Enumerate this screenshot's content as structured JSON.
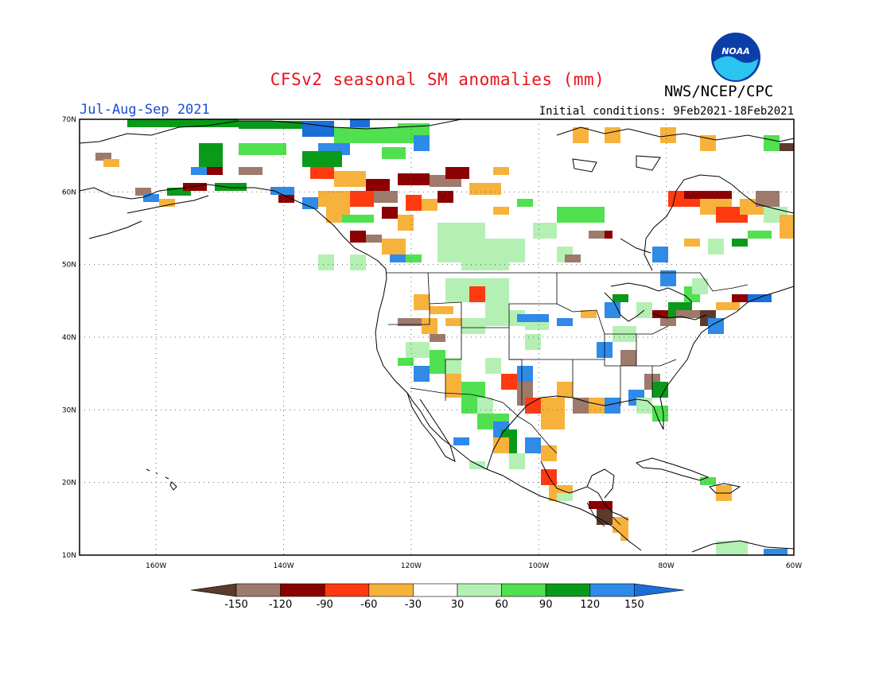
{
  "header": {
    "title": "CFSv2 seasonal SM anomalies (mm)",
    "agency": "NWS/NCEP/CPC",
    "valid_period": "Jul-Aug-Sep 2021",
    "initial_conditions": "Initial conditions: 9Feb2021-18Feb2021",
    "logo_text": "NOAA"
  },
  "map": {
    "lat_labels": [
      "70N",
      "60N",
      "50N",
      "40N",
      "30N",
      "20N",
      "10N"
    ],
    "lon_labels": [
      "160W",
      "140W",
      "120W",
      "100W",
      "80W",
      "60W"
    ],
    "lon_range": [
      -172,
      -60
    ],
    "lat_range": [
      10,
      70
    ]
  },
  "colorbar": {
    "labels": [
      "-150",
      "-120",
      "-90",
      "-60",
      "-30",
      "30",
      "60",
      "90",
      "120",
      "150"
    ],
    "colors": [
      "#5c3a2c",
      "#9d7a6c",
      "#8b0000",
      "#ff3a10",
      "#f7b23c",
      "#ffffff",
      "#b4f0b4",
      "#50e050",
      "#0a9a1a",
      "#2f8ae8",
      "#1a6ed8"
    ]
  }
}
